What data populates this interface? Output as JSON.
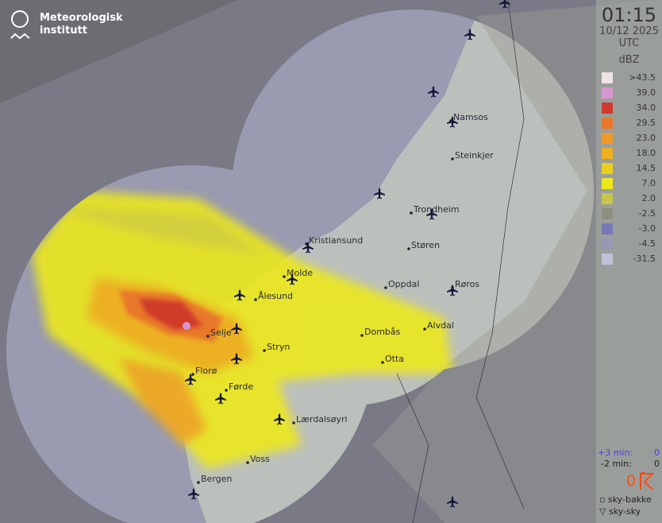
{
  "logo": {
    "name": "Meteorologisk institutt"
  },
  "panel": {
    "time": "01:15",
    "date": "10/12 2025",
    "timezone": "UTC",
    "unit": "dBZ",
    "legend": [
      {
        "label": ">43.5",
        "color": "#f0e4e6"
      },
      {
        "label": "39.0",
        "color": "#d896d0"
      },
      {
        "label": "34.0",
        "color": "#d03a2c"
      },
      {
        "label": "29.5",
        "color": "#e8782a"
      },
      {
        "label": "23.0",
        "color": "#ee9a28"
      },
      {
        "label": "18.0",
        "color": "#ecb020"
      },
      {
        "label": "14.5",
        "color": "#ecce20"
      },
      {
        "label": "7.0",
        "color": "#ece81e"
      },
      {
        "label": "2.0",
        "color": "#c8c44c"
      },
      {
        "label": "-2.5",
        "color": "#8e8e80"
      },
      {
        "label": "-3.0",
        "color": "#7878b8"
      },
      {
        "label": "-4.5",
        "color": "#9898b4"
      },
      {
        "label": "-31.5",
        "color": "#c0c0d8"
      }
    ],
    "plus_label": "+3 min:",
    "plus_value": "0",
    "minus_label": "-2 min:",
    "minus_value": "0",
    "lightning_count": "0",
    "lightning_color": "#ff4a10",
    "sky_ground": "sky-bakke",
    "sky_sky": "sky-sky"
  },
  "cities": [
    {
      "name": "Namsos"
    },
    {
      "name": "Steinkjer"
    },
    {
      "name": "Trondheim"
    },
    {
      "name": "Kristiansund"
    },
    {
      "name": "Støren"
    },
    {
      "name": "Molde"
    },
    {
      "name": "Oppdal"
    },
    {
      "name": "Røros"
    },
    {
      "name": "Ålesund"
    },
    {
      "name": "Dombås"
    },
    {
      "name": "Alvdal"
    },
    {
      "name": "Selje"
    },
    {
      "name": "Stryn"
    },
    {
      "name": "Otta"
    },
    {
      "name": "Florø"
    },
    {
      "name": "Førde"
    },
    {
      "name": "Lærdalsøyri"
    },
    {
      "name": "Voss"
    },
    {
      "name": "Bergen"
    }
  ]
}
